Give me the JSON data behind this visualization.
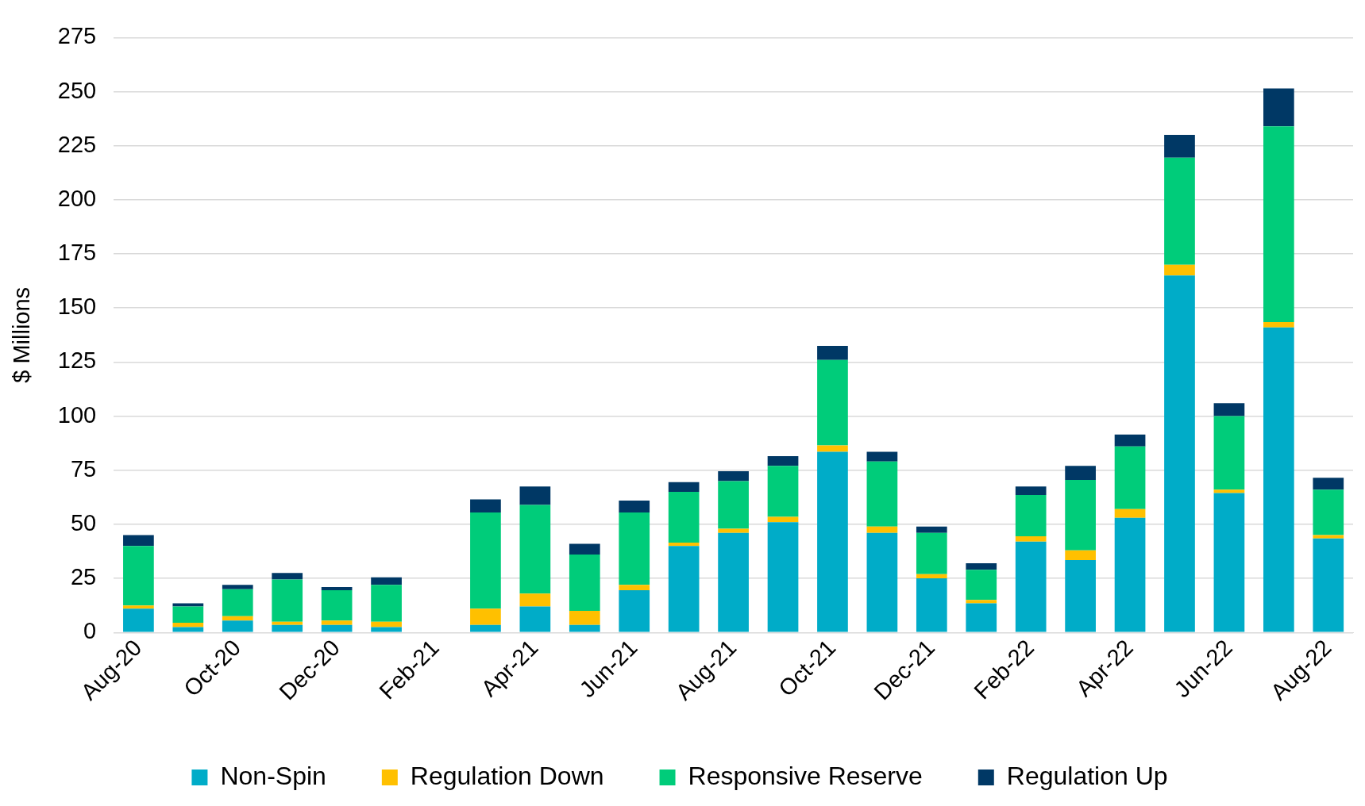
{
  "chart_data": {
    "type": "bar",
    "stacked": true,
    "ylabel": "$ Millions",
    "ylim": [
      0,
      275
    ],
    "yticks": [
      0,
      25,
      50,
      75,
      100,
      125,
      150,
      175,
      200,
      225,
      250,
      275
    ],
    "grid": "y",
    "legend": "bottom",
    "categories": [
      "Aug-20",
      null,
      "Oct-20",
      null,
      "Dec-20",
      null,
      "Feb-21",
      null,
      "Apr-21",
      null,
      "Jun-21",
      null,
      "Aug-21",
      null,
      "Oct-21",
      null,
      "Dec-21",
      null,
      "Feb-22",
      null,
      "Apr-22",
      null,
      "Jun-22",
      null,
      "Aug-22"
    ],
    "series": [
      {
        "name": "Non-Spin",
        "color": "#00acc8",
        "values": [
          11,
          2.5,
          5.5,
          3.5,
          3.5,
          2.5,
          null,
          3.5,
          12,
          3.5,
          19.5,
          40,
          46,
          51,
          83.5,
          46,
          25,
          13.5,
          42,
          33.5,
          53,
          165,
          64.5,
          141,
          43.5
        ]
      },
      {
        "name": "Regulation Down",
        "color": "#ffc000",
        "values": [
          1.5,
          2,
          2,
          1.5,
          2,
          2.5,
          null,
          7.5,
          6,
          6.5,
          2.5,
          1.5,
          2,
          2.5,
          3,
          3,
          2,
          1.5,
          2.5,
          4.5,
          4,
          5,
          1.5,
          2.5,
          1.5
        ]
      },
      {
        "name": "Responsive Reserve",
        "color": "#00cc7a",
        "values": [
          27.5,
          7.5,
          12.5,
          19.5,
          14,
          17,
          null,
          44.5,
          41,
          26,
          33.5,
          23.5,
          22,
          23.5,
          39.5,
          30,
          19,
          14,
          19,
          32.5,
          29,
          49.5,
          34,
          90.5,
          21
        ]
      },
      {
        "name": "Regulation Up",
        "color": "#003865",
        "values": [
          5,
          1.5,
          2,
          3,
          1.5,
          3.5,
          null,
          6,
          8.5,
          5,
          5.5,
          4.5,
          4.5,
          4.5,
          6.5,
          4.5,
          3,
          3,
          4,
          6.5,
          5.5,
          10.5,
          6,
          17.5,
          5.5
        ]
      }
    ]
  }
}
